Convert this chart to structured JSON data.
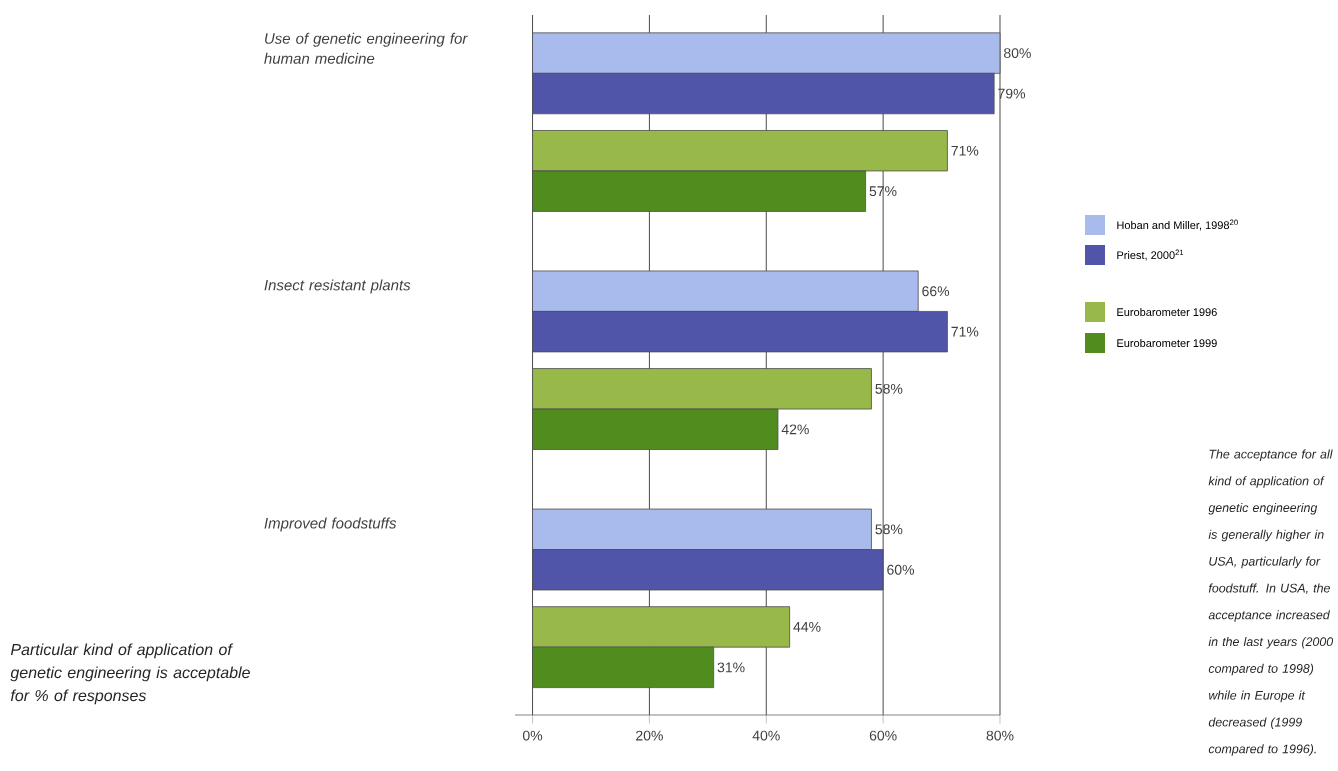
{
  "chart_data": {
    "type": "bar",
    "orientation": "horizontal",
    "categories": [
      "Use of genetic engineering for human medicine",
      "Insect resistant plants",
      "Improved foodstuffs"
    ],
    "series": [
      {
        "name": "Hoban and Miller, 1998$^{20}$",
        "color": "#a8bbec",
        "values": [
          80,
          66,
          58
        ],
        "value_labels": [
          "80%",
          "66%",
          "58%"
        ]
      },
      {
        "name": "Priest, 2000$^{21}$",
        "color": "#5055aa",
        "values": [
          79,
          71,
          60
        ],
        "value_labels": [
          "79%",
          "71%",
          "60%"
        ]
      },
      {
        "name": "Eurobarometer 1996",
        "color": "#98b84a",
        "values": [
          71,
          58,
          44
        ],
        "value_labels": [
          "71%",
          "58%",
          "44%"
        ]
      },
      {
        "name": "Eurobarometer 1999",
        "color": "#518c1e",
        "values": [
          57,
          42,
          31
        ],
        "value_labels": [
          "57%",
          "42%",
          "31%"
        ]
      }
    ],
    "xlim": [
      -3,
      80
    ],
    "xticks": [
      {
        "value": 0,
        "label": "0%"
      },
      {
        "value": 20,
        "label": "20%"
      },
      {
        "value": 40,
        "label": "40%"
      },
      {
        "value": 60,
        "label": "60%"
      },
      {
        "value": 80,
        "label": "80%"
      }
    ],
    "grid": "x",
    "legend": "right",
    "annotations": [
      "The acceptance for all kind of application of genetic engineering is generally higher in USA, particularly for foodstuff. In USA, the acceptance increased in the last years (2000 compared to 1998) while in Europe it decreased (1999 compared to 1996).",
      "Particular kind of application of genetic engineering is acceptable for % of responses"
    ]
  }
}
